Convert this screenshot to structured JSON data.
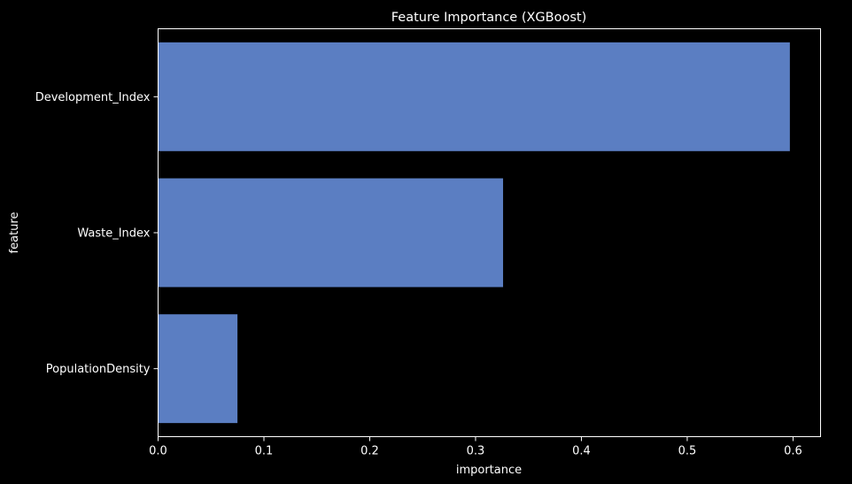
{
  "chart_data": {
    "type": "bar",
    "orientation": "horizontal",
    "title": "Feature Importance (XGBoost)",
    "xlabel": "importance",
    "ylabel": "feature",
    "categories": [
      "Development_Index",
      "Waste_Index",
      "PopulationDensity"
    ],
    "values": [
      0.597,
      0.326,
      0.075
    ],
    "xlim": [
      0,
      0.626
    ],
    "xticks": [
      0.0,
      0.1,
      0.2,
      0.3,
      0.4,
      0.5,
      0.6
    ],
    "xtick_labels": [
      "0.0",
      "0.1",
      "0.2",
      "0.3",
      "0.4",
      "0.5",
      "0.6"
    ],
    "grid": false,
    "legend": "none",
    "colors": {
      "bar": "#5b7ec2",
      "background": "#000000",
      "axes": "#ffffff",
      "text": "#ffffff"
    }
  }
}
